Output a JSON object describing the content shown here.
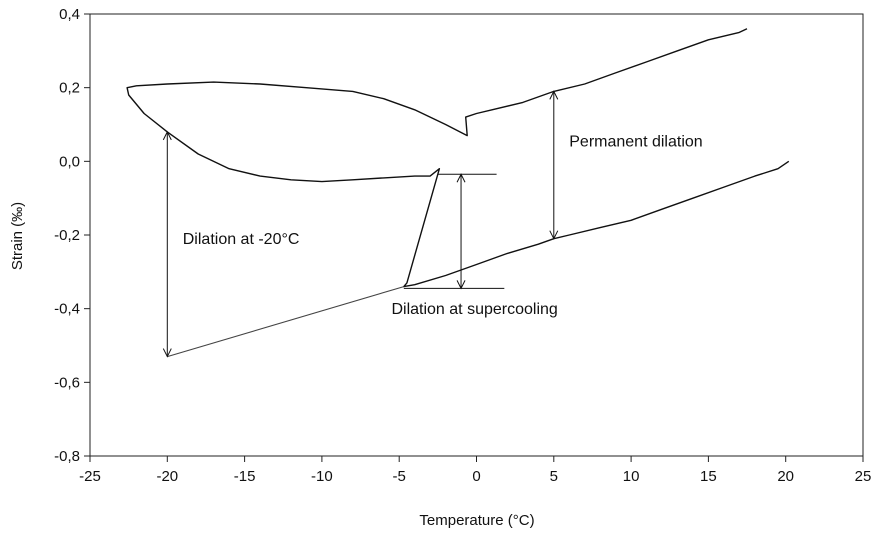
{
  "chart_data": {
    "type": "line",
    "title": "",
    "xlabel": "Temperature (°C)",
    "ylabel": "Strain (‰)",
    "xlim": [
      -25,
      25
    ],
    "ylim": [
      -0.8,
      0.4
    ],
    "xticks": [
      -25,
      -20,
      -15,
      -10,
      -5,
      0,
      5,
      10,
      15,
      20,
      25
    ],
    "xtick_labels": [
      "-25",
      "-20",
      "-15",
      "-10",
      "-5",
      "0",
      "5",
      "10",
      "15",
      "20",
      "25"
    ],
    "yticks": [
      -0.8,
      -0.6,
      -0.4,
      -0.2,
      0.0,
      0.2,
      0.4
    ],
    "ytick_labels": [
      "-0,8",
      "-0,6",
      "-0,4",
      "-0,2",
      "0,0",
      "0,2",
      "0,4"
    ],
    "grid": false,
    "legend": "none",
    "line_color": "#111111",
    "series": [
      {
        "values_xy": [
          [
            20.2,
            0.0
          ],
          [
            19.5,
            -0.02
          ],
          [
            18,
            -0.04
          ],
          [
            16,
            -0.07
          ],
          [
            14,
            -0.1
          ],
          [
            12,
            -0.13
          ],
          [
            10,
            -0.16
          ],
          [
            8,
            -0.18
          ],
          [
            6,
            -0.2
          ],
          [
            5,
            -0.21
          ],
          [
            4,
            -0.225
          ],
          [
            2,
            -0.25
          ],
          [
            0,
            -0.28
          ],
          [
            -2,
            -0.31
          ],
          [
            -4,
            -0.335
          ],
          [
            -4.7,
            -0.34
          ],
          [
            -4.5,
            -0.33
          ],
          [
            -2.4,
            -0.02
          ],
          [
            -3,
            -0.04
          ],
          [
            -4,
            -0.04
          ],
          [
            -6,
            -0.045
          ],
          [
            -8,
            -0.05
          ],
          [
            -10,
            -0.055
          ],
          [
            -12,
            -0.05
          ],
          [
            -14,
            -0.04
          ],
          [
            -16,
            -0.02
          ],
          [
            -18,
            0.02
          ],
          [
            -20,
            0.08
          ],
          [
            -21.5,
            0.13
          ],
          [
            -22.5,
            0.18
          ],
          [
            -22.6,
            0.2
          ],
          [
            -22,
            0.205
          ],
          [
            -20,
            0.21
          ],
          [
            -17,
            0.215
          ],
          [
            -14,
            0.21
          ],
          [
            -11,
            0.2
          ],
          [
            -8,
            0.19
          ],
          [
            -6,
            0.17
          ],
          [
            -4,
            0.14
          ],
          [
            -2,
            0.1
          ],
          [
            -0.6,
            0.07
          ],
          [
            -0.7,
            0.12
          ],
          [
            0,
            0.13
          ],
          [
            1,
            0.14
          ],
          [
            3,
            0.16
          ],
          [
            5,
            0.19
          ],
          [
            7,
            0.21
          ],
          [
            9,
            0.24
          ],
          [
            11,
            0.27
          ],
          [
            13,
            0.3
          ],
          [
            15,
            0.33
          ],
          [
            17,
            0.35
          ],
          [
            17.5,
            0.36
          ]
        ]
      },
      {
        "values_xy": [
          [
            -20,
            -0.53
          ],
          [
            -4.7,
            -0.34
          ]
        ]
      }
    ],
    "annotations": [
      {
        "text": "Dilation at -20°C",
        "x": -19,
        "y": -0.225,
        "arrow_x": -20,
        "arrow_from": 0.08,
        "arrow_to": -0.53
      },
      {
        "text": "Permanent dilation",
        "x": 6,
        "y": 0.04,
        "arrow_x": 5,
        "arrow_from": 0.19,
        "arrow_to": -0.21
      },
      {
        "text": "Dilation at supercooling",
        "x": -5.5,
        "y": -0.415,
        "arrow_x": -1,
        "arrow_from": -0.035,
        "arrow_to": -0.345
      }
    ],
    "reference_lines": [
      {
        "x1": -2.5,
        "x2": 1.3,
        "y": -0.035
      },
      {
        "x1": -4.7,
        "x2": 1.8,
        "y": -0.345
      }
    ]
  }
}
